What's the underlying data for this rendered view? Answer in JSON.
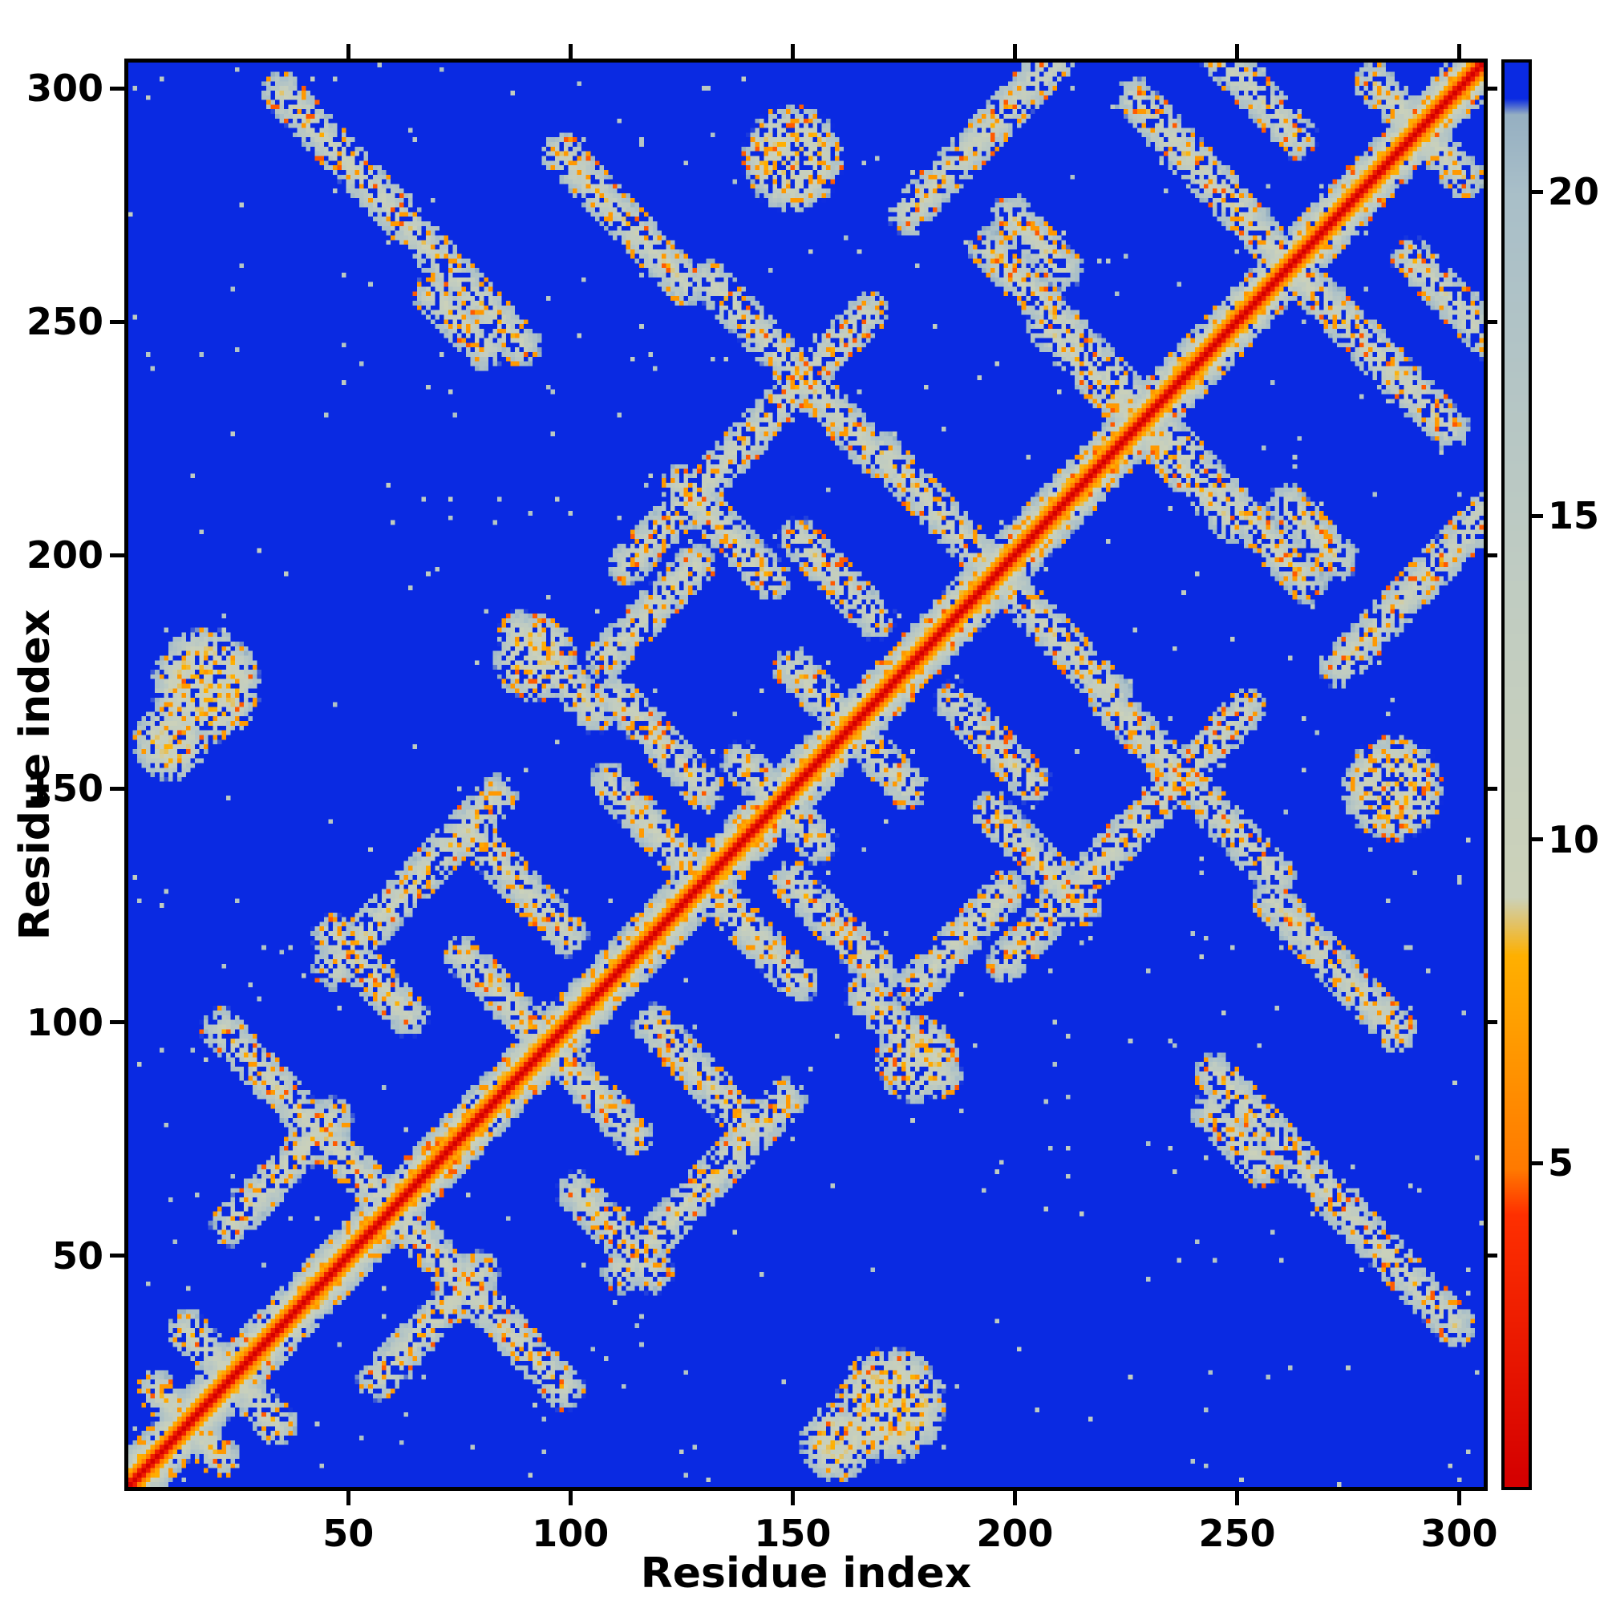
{
  "figure": {
    "background": "#ffffff"
  },
  "chart_data": {
    "type": "heatmap",
    "title": "",
    "xlabel": "Residue index",
    "ylabel": "Residue index",
    "x_range": [
      1,
      305
    ],
    "y_range": [
      1,
      305
    ],
    "x_ticks": [
      50,
      100,
      150,
      200,
      250,
      300
    ],
    "y_ticks": [
      50,
      100,
      150,
      200,
      250,
      300
    ],
    "grid": false,
    "colorbar": {
      "position": "right",
      "vmin": 0,
      "vmax": 22,
      "ticks": [
        5,
        10,
        15,
        20
      ]
    },
    "colormap": {
      "stops": [
        [
          0,
          "#d40000"
        ],
        [
          4.2,
          "#ff3000"
        ],
        [
          4.9,
          "#ff7a00"
        ],
        [
          8.2,
          "#ffb000"
        ],
        [
          9.1,
          "#ccd2ba"
        ],
        [
          14,
          "#c0ccc2"
        ],
        [
          20,
          "#a9bfc9"
        ],
        [
          21.2,
          "#96b0c2"
        ],
        [
          21.45,
          "#0a2ae2"
        ],
        [
          22,
          "#0a2ae2"
        ]
      ]
    },
    "matrix": {
      "n": 305,
      "symmetric": true,
      "description": "Residue-residue distance map: red main diagonal (short distances) with pale gray/orange secondary-structure contact streaks on a blue (>21) background",
      "diagonal_scale": 2.6,
      "feature_base_distance": 10,
      "feature_width_scale": 2.4,
      "features": {
        "diagonal_crossings": [
          {
            "c": 14,
            "len": 10
          },
          {
            "c": 24,
            "len": 14
          },
          {
            "c": 60,
            "len": 36
          },
          {
            "c": 95,
            "len": 27
          },
          {
            "c": 130,
            "len": 30
          },
          {
            "c": 147,
            "len": 12
          },
          {
            "c": 163,
            "len": 18
          },
          {
            "c": 196,
            "len": 28
          },
          {
            "c": 228,
            "len": 30
          },
          {
            "c": 262,
            "len": 40
          },
          {
            "c": 291,
            "len": 14
          }
        ],
        "anti_segments": [
          {
            "i": 62,
            "j": 272,
            "len": 38
          },
          {
            "i": 112,
            "j": 272,
            "len": 20
          },
          {
            "i": 150,
            "j": 240,
            "len": 26
          },
          {
            "i": 97,
            "j": 175,
            "len": 12
          },
          {
            "i": 135,
            "j": 205,
            "len": 14
          },
          {
            "i": 210,
            "j": 250,
            "len": 22
          },
          {
            "i": 240,
            "j": 285,
            "len": 18
          },
          {
            "i": 88,
            "j": 130,
            "len": 16
          },
          {
            "i": 120,
            "j": 160,
            "len": 14
          },
          {
            "i": 55,
            "j": 110,
            "len": 12
          },
          {
            "i": 30,
            "j": 90,
            "len": 12
          },
          {
            "i": 180,
            "j": 212,
            "len": 14
          },
          {
            "i": 160,
            "j": 195,
            "len": 12
          },
          {
            "i": 255,
            "j": 298,
            "len": 12
          },
          {
            "i": 75,
            "j": 250,
            "len": 8
          },
          {
            "i": 205,
            "j": 267,
            "len": 8
          }
        ],
        "parallel_segments": [
          {
            "i": 140,
            "j": 225,
            "len": 38
          },
          {
            "i": 65,
            "j": 130,
            "len": 26
          },
          {
            "i": 196,
            "j": 293,
            "len": 28
          },
          {
            "i": 35,
            "j": 68,
            "len": 16
          },
          {
            "i": 118,
            "j": 188,
            "len": 14
          }
        ],
        "blobs": [
          {
            "i": 18,
            "j": 172,
            "r": 8
          },
          {
            "i": 150,
            "j": 285,
            "r": 7
          },
          {
            "i": 10,
            "j": 160,
            "r": 4
          },
          {
            "i": 92,
            "j": 178,
            "r": 5
          }
        ]
      },
      "speckle": {
        "hole_prob_off_diag": 0.22,
        "hole_prob_near_diag": 0.05,
        "orange_prob": 0.09,
        "red_prob": 0.022,
        "orange_value": 6.8,
        "red_value": 4.6,
        "jitter": 4.5,
        "sparse_dot_prob": 0.005
      }
    }
  }
}
